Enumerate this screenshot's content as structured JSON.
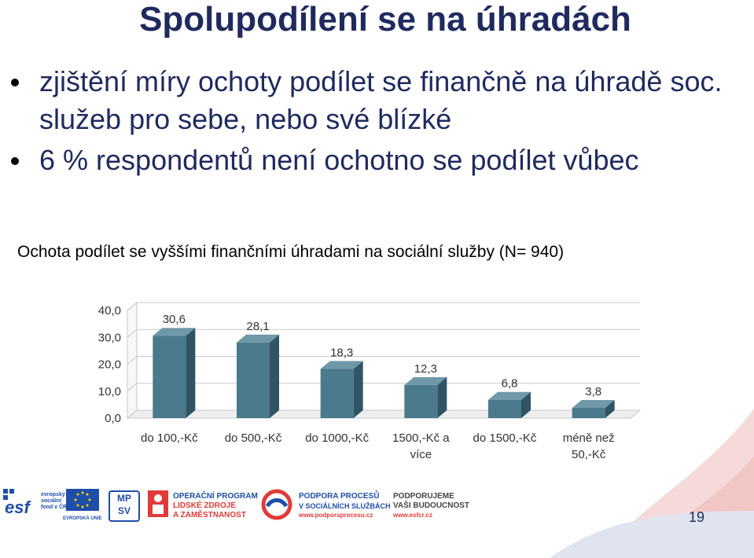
{
  "slide": {
    "title": "Spolupodílení se na úhradách",
    "bullets": [
      "zjištění míry ochoty podílet se finančně na úhradě soc. služeb pro sebe, nebo své blízké",
      "6 % respondentů není ochotno se podílet vůbec"
    ],
    "chart_title": "Ochota podílet se vyššími finančními úhradami na sociální služby (N= 940)",
    "page_number": "19"
  },
  "colors": {
    "title": "#1f2a5e",
    "bar_front": "#4a7a8c",
    "bar_side": "#2f5564",
    "bar_top": "#6f98a8",
    "accent_red": "#e23a3a",
    "accent_blue": "#1f4ea8"
  },
  "chart_data": {
    "type": "bar",
    "categories": [
      "do 100,-Kč",
      "do 500,-Kč",
      "do 1000,-Kč",
      "1500,-Kč a více",
      "do 1500,-Kč",
      "méně než 50,-Kč"
    ],
    "category_lines": [
      [
        "do 100,-Kč"
      ],
      [
        "do 500,-Kč"
      ],
      [
        "do 1000,-Kč"
      ],
      [
        "1500,-Kč a",
        "více"
      ],
      [
        "do 1500,-Kč"
      ],
      [
        "méně než",
        "50,-Kč"
      ]
    ],
    "values": [
      30.6,
      28.1,
      18.3,
      12.3,
      6.8,
      3.8
    ],
    "value_labels": [
      "30,6",
      "28,1",
      "18,3",
      "12,3",
      "6,8",
      "3,8"
    ],
    "yticks": [
      "0,0",
      "10,0",
      "20,0",
      "30,0",
      "40,0"
    ],
    "ylim": [
      0,
      40
    ],
    "grid": true,
    "legend": "none",
    "style": "3d-column"
  },
  "logos": {
    "esf": "esf",
    "esf_caption": [
      "evropský",
      "sociální",
      "fond v ČR"
    ],
    "eu_caption": "EVROPSKÁ UNIE",
    "mpsv": [
      "MP",
      "SV"
    ],
    "op": [
      "OPERAČNÍ PROGRAM",
      "LIDSKÉ ZDROJE",
      "A ZAMĚSTNANOST"
    ],
    "pp": [
      "PODPORA PROCESŮ",
      "V SOCIÁLNÍCH SLUŽBÁCH",
      "www.podporaprocesu.cz"
    ],
    "pvb": [
      "PODPORUJEME",
      "VAŠI BUDOUCNOST",
      "www.esfcr.cz"
    ]
  }
}
